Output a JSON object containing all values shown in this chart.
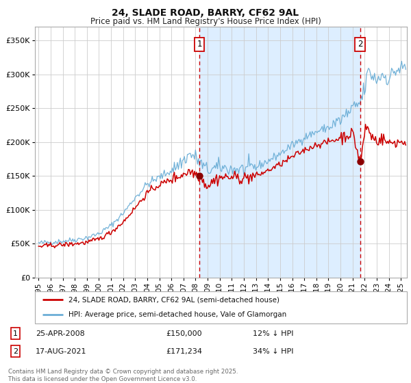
{
  "title": "24, SLADE ROAD, BARRY, CF62 9AL",
  "subtitle": "Price paid vs. HM Land Registry's House Price Index (HPI)",
  "footer": "Contains HM Land Registry data © Crown copyright and database right 2025.\nThis data is licensed under the Open Government Licence v3.0.",
  "legend_line1": "24, SLADE ROAD, BARRY, CF62 9AL (semi-detached house)",
  "legend_line2": "HPI: Average price, semi-detached house, Vale of Glamorgan",
  "annotation1_date": "25-APR-2008",
  "annotation1_price": "£150,000",
  "annotation1_hpi": "12% ↓ HPI",
  "annotation2_date": "17-AUG-2021",
  "annotation2_price": "£171,234",
  "annotation2_hpi": "34% ↓ HPI",
  "sale1_x": 2008.32,
  "sale1_y": 150000,
  "sale2_x": 2021.63,
  "sale2_y": 171234,
  "hpi_color": "#6baed6",
  "price_color": "#cc0000",
  "dot_color": "#8b0000",
  "background_color": "#ffffff",
  "shaded_region_color": "#ddeeff",
  "dashed_line_color": "#cc0000",
  "ylim": [
    0,
    370000
  ],
  "xlim_start": 1994.7,
  "xlim_end": 2025.5,
  "ytick_values": [
    0,
    50000,
    100000,
    150000,
    200000,
    250000,
    300000,
    350000
  ],
  "ytick_labels": [
    "£0",
    "£50K",
    "£100K",
    "£150K",
    "£200K",
    "£250K",
    "£300K",
    "£350K"
  ],
  "xtick_years": [
    1995,
    1996,
    1997,
    1998,
    1999,
    2000,
    2001,
    2002,
    2003,
    2004,
    2005,
    2006,
    2007,
    2008,
    2009,
    2010,
    2011,
    2012,
    2013,
    2014,
    2015,
    2016,
    2017,
    2018,
    2019,
    2020,
    2021,
    2022,
    2023,
    2024,
    2025
  ]
}
